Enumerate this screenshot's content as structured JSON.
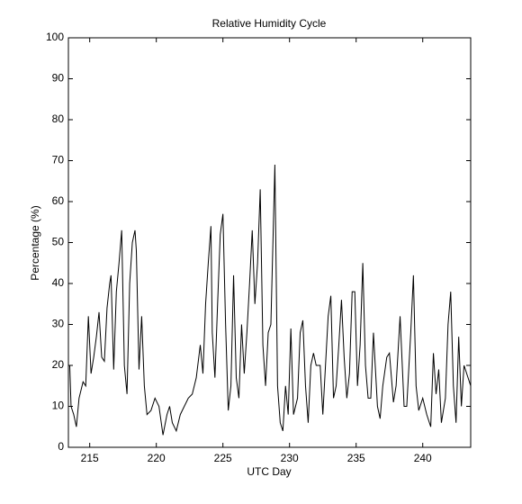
{
  "chart_data": {
    "type": "line",
    "title": "Relative Humidity Cycle",
    "x_label": "UTC Day",
    "y_label": "Percentage (%)",
    "color": "#000000",
    "xlim": [
      213.4,
      243.6
    ],
    "ylim": [
      0,
      100
    ],
    "xticks": [
      215,
      220,
      225,
      230,
      235,
      240
    ],
    "yticks": [
      0,
      10,
      20,
      30,
      40,
      50,
      60,
      70,
      80,
      90,
      100
    ],
    "x": [
      213.4,
      213.5,
      213.6,
      213.8,
      214.0,
      214.2,
      214.5,
      214.7,
      214.9,
      215.1,
      215.3,
      215.5,
      215.7,
      215.9,
      216.1,
      216.3,
      216.5,
      216.6,
      216.8,
      217.0,
      217.2,
      217.4,
      217.6,
      217.8,
      218.0,
      218.2,
      218.4,
      218.5,
      218.7,
      218.9,
      219.1,
      219.3,
      219.6,
      219.9,
      220.2,
      220.5,
      220.8,
      221.0,
      221.2,
      221.5,
      221.8,
      222.1,
      222.4,
      222.7,
      223.0,
      223.3,
      223.5,
      223.7,
      223.9,
      224.1,
      224.2,
      224.4,
      224.6,
      224.8,
      225.0,
      225.2,
      225.4,
      225.6,
      225.8,
      226.0,
      226.2,
      226.4,
      226.6,
      226.8,
      227.0,
      227.2,
      227.4,
      227.6,
      227.8,
      228.0,
      228.2,
      228.4,
      228.6,
      228.9,
      229.1,
      229.3,
      229.5,
      229.7,
      229.9,
      230.1,
      230.3,
      230.6,
      230.8,
      231.0,
      231.2,
      231.4,
      231.6,
      231.8,
      232.0,
      232.3,
      232.5,
      232.7,
      232.9,
      233.1,
      233.3,
      233.5,
      233.7,
      233.9,
      234.1,
      234.3,
      234.5,
      234.7,
      234.9,
      235.1,
      235.3,
      235.5,
      235.7,
      235.9,
      236.1,
      236.3,
      236.6,
      236.8,
      237.0,
      237.3,
      237.5,
      237.8,
      238.0,
      238.3,
      238.6,
      238.8,
      239.1,
      239.3,
      239.5,
      239.7,
      240.0,
      240.3,
      240.6,
      240.8,
      241.0,
      241.2,
      241.4,
      241.7,
      241.9,
      242.1,
      242.3,
      242.5,
      242.7,
      242.9,
      243.1,
      243.6
    ],
    "values": [
      20,
      20,
      10,
      8,
      5,
      12,
      16,
      15,
      32,
      18,
      22,
      27,
      33,
      22,
      21,
      34,
      40,
      42,
      19,
      38,
      45,
      53,
      20,
      13,
      40,
      50,
      53,
      48,
      19,
      32,
      15,
      8,
      9,
      12,
      10,
      3,
      8,
      10,
      6,
      4,
      8,
      10,
      12,
      13,
      17,
      25,
      18,
      35,
      45,
      54,
      28,
      17,
      35,
      52,
      57,
      30,
      9,
      15,
      42,
      17,
      12,
      30,
      18,
      28,
      40,
      53,
      35,
      45,
      63,
      25,
      15,
      28,
      30,
      69,
      15,
      6,
      4,
      15,
      8,
      29,
      8,
      12,
      28,
      31,
      15,
      6,
      20,
      23,
      20,
      20,
      8,
      20,
      32,
      37,
      12,
      15,
      25,
      36,
      22,
      12,
      18,
      38,
      38,
      15,
      25,
      45,
      20,
      12,
      12,
      28,
      10,
      7,
      15,
      22,
      23,
      11,
      15,
      32,
      10,
      10,
      28,
      42,
      15,
      9,
      12,
      8,
      5,
      23,
      13,
      19,
      6,
      12,
      30,
      38,
      15,
      6,
      27,
      10,
      20,
      15
    ]
  }
}
